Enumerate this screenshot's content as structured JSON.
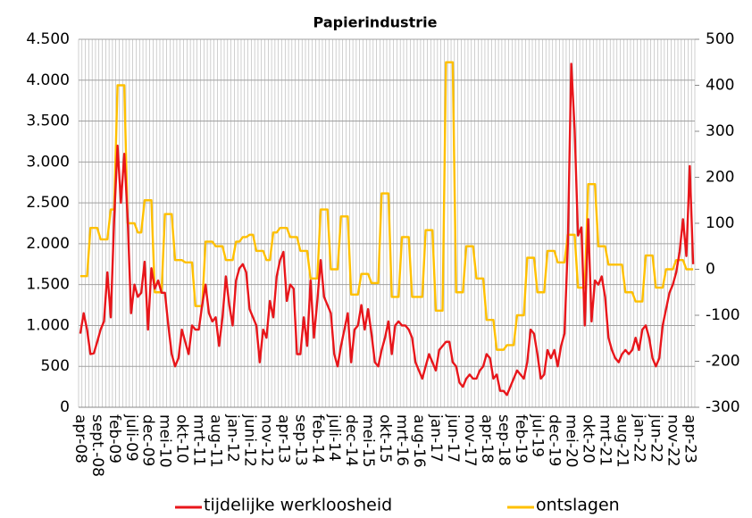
{
  "chart_data": {
    "type": "line",
    "title": "Papierindustrie",
    "categories": [
      "apr-08",
      null,
      null,
      null,
      null,
      "sept.-08",
      null,
      null,
      null,
      null,
      "feb-09",
      null,
      null,
      null,
      null,
      "juli-09",
      null,
      null,
      null,
      null,
      "dec-09",
      null,
      null,
      null,
      null,
      "mei-10",
      null,
      null,
      null,
      null,
      "okt-10",
      null,
      null,
      null,
      null,
      "mrt-11",
      null,
      null,
      null,
      null,
      "aug-11",
      null,
      null,
      null,
      null,
      "jan-12",
      null,
      null,
      null,
      null,
      "juni-12",
      null,
      null,
      null,
      null,
      "nov-12",
      null,
      null,
      null,
      null,
      "apr-13",
      null,
      null,
      null,
      null,
      "sep-13",
      null,
      null,
      null,
      null,
      "feb-14",
      null,
      null,
      null,
      null,
      "juli-14",
      null,
      null,
      null,
      null,
      "dec-14",
      null,
      null,
      null,
      null,
      "mei-15",
      null,
      null,
      null,
      null,
      "okt-15",
      null,
      null,
      null,
      null,
      "mrt-16",
      null,
      null,
      null,
      null,
      "aug-16",
      null,
      null,
      null,
      null,
      "jan-17",
      null,
      null,
      null,
      null,
      "jun-17",
      null,
      null,
      null,
      null,
      "nov-17",
      null,
      null,
      null,
      null,
      "apr-18",
      null,
      null,
      null,
      null,
      "sep-18",
      null,
      null,
      null,
      null,
      "feb-19",
      null,
      null,
      null,
      null,
      "jul-19",
      null,
      null,
      null,
      null,
      "dec-19",
      null,
      null,
      null,
      null,
      "mei-20",
      null,
      null,
      null,
      null,
      "okt-20",
      null,
      null,
      null,
      null,
      "mrt-21",
      null,
      null,
      null,
      null,
      "aug-21",
      null,
      null,
      null,
      null,
      "jan-22",
      null,
      null,
      null,
      null,
      "jun-22",
      null,
      null,
      null,
      null,
      "nov-22",
      null,
      null,
      null,
      null,
      "apr-23",
      null
    ],
    "series": [
      {
        "name": "tijdelijke werkloosheid",
        "color": "#e8161b",
        "axis": "y",
        "values": [
          900,
          1150,
          950,
          650,
          660,
          800,
          950,
          1050,
          1650,
          1100,
          2300,
          3200,
          2500,
          3100,
          2300,
          1150,
          1500,
          1350,
          1400,
          1780,
          950,
          1700,
          1450,
          1550,
          1400,
          1400,
          1000,
          650,
          500,
          600,
          950,
          800,
          650,
          1000,
          950,
          950,
          1250,
          1500,
          1150,
          1050,
          1100,
          750,
          1100,
          1600,
          1250,
          1000,
          1550,
          1700,
          1750,
          1650,
          1200,
          1100,
          1000,
          550,
          950,
          850,
          1300,
          1100,
          1600,
          1800,
          1900,
          1300,
          1500,
          1450,
          650,
          650,
          1100,
          750,
          1550,
          850,
          1300,
          1800,
          1350,
          1250,
          1150,
          650,
          500,
          750,
          950,
          1150,
          550,
          950,
          1000,
          1250,
          950,
          1200,
          900,
          550,
          500,
          700,
          850,
          1050,
          650,
          1000,
          1050,
          1000,
          1000,
          950,
          850,
          550,
          450,
          350,
          500,
          650,
          550,
          450,
          700,
          750,
          800,
          800,
          550,
          500,
          300,
          250,
          350,
          400,
          350,
          350,
          450,
          500,
          650,
          600,
          350,
          400,
          200,
          200,
          150,
          250,
          350,
          450,
          400,
          350,
          550,
          950,
          900,
          650,
          350,
          400,
          700,
          600,
          700,
          500,
          750,
          900,
          2000,
          4200,
          3400,
          2100,
          2200,
          1000,
          2300,
          1050,
          1550,
          1500,
          1600,
          1350,
          850,
          700,
          600,
          550,
          650,
          700,
          650,
          700,
          850,
          700,
          950,
          1000,
          850,
          600,
          500,
          600,
          1000,
          1200,
          1400,
          1500,
          1650,
          1900,
          2300,
          1850,
          2950,
          1750
        ]
      },
      {
        "name": "ontslagen",
        "color": "#ffc000",
        "axis": "y2",
        "values": [
          -15,
          -15,
          -15,
          90,
          90,
          90,
          65,
          65,
          65,
          130,
          130,
          400,
          400,
          400,
          100,
          100,
          100,
          80,
          80,
          150,
          150,
          150,
          -50,
          -50,
          -50,
          120,
          120,
          120,
          20,
          20,
          20,
          15,
          15,
          15,
          -80,
          -80,
          -80,
          60,
          60,
          60,
          50,
          50,
          50,
          20,
          20,
          20,
          60,
          60,
          70,
          70,
          75,
          75,
          40,
          40,
          40,
          20,
          20,
          80,
          80,
          90,
          90,
          90,
          70,
          70,
          70,
          40,
          40,
          40,
          -20,
          -20,
          -20,
          130,
          130,
          130,
          0,
          0,
          0,
          115,
          115,
          115,
          -55,
          -55,
          -55,
          -10,
          -10,
          -10,
          -30,
          -30,
          -30,
          165,
          165,
          165,
          -60,
          -60,
          -60,
          70,
          70,
          70,
          -60,
          -60,
          -60,
          -60,
          85,
          85,
          85,
          -90,
          -90,
          -90,
          450,
          450,
          450,
          -50,
          -50,
          -50,
          50,
          50,
          50,
          -20,
          -20,
          -20,
          -110,
          -110,
          -110,
          -175,
          -175,
          -175,
          -165,
          -165,
          -165,
          -100,
          -100,
          -100,
          25,
          25,
          25,
          -50,
          -50,
          -50,
          40,
          40,
          40,
          15,
          15,
          15,
          75,
          75,
          75,
          -40,
          -40,
          -40,
          185,
          185,
          185,
          50,
          50,
          50,
          10,
          10,
          10,
          10,
          10,
          -50,
          -50,
          -50,
          -70,
          -70,
          -70,
          30,
          30,
          30,
          -40,
          -40,
          -40,
          0,
          0,
          0,
          20,
          20,
          20,
          0,
          0,
          0
        ]
      }
    ],
    "ylim": [
      0,
      4500
    ],
    "yticks": [
      0,
      500,
      {
        "value": 1000,
        "label": "1.000"
      },
      {
        "value": 1500,
        "label": "1.500"
      },
      {
        "value": 2000,
        "label": "2.000"
      },
      {
        "value": 2500,
        "label": "2.500"
      },
      {
        "value": 3000,
        "label": "3.000"
      },
      {
        "value": 3500,
        "label": "3.500"
      },
      {
        "value": 4000,
        "label": "4.000"
      },
      {
        "value": 4500,
        "label": "4.500"
      }
    ],
    "y2lim": [
      -300,
      500
    ],
    "y2ticks": [
      -300,
      -200,
      -100,
      0,
      100,
      200,
      300,
      400,
      500
    ],
    "grid": true,
    "legend": "bottom"
  }
}
